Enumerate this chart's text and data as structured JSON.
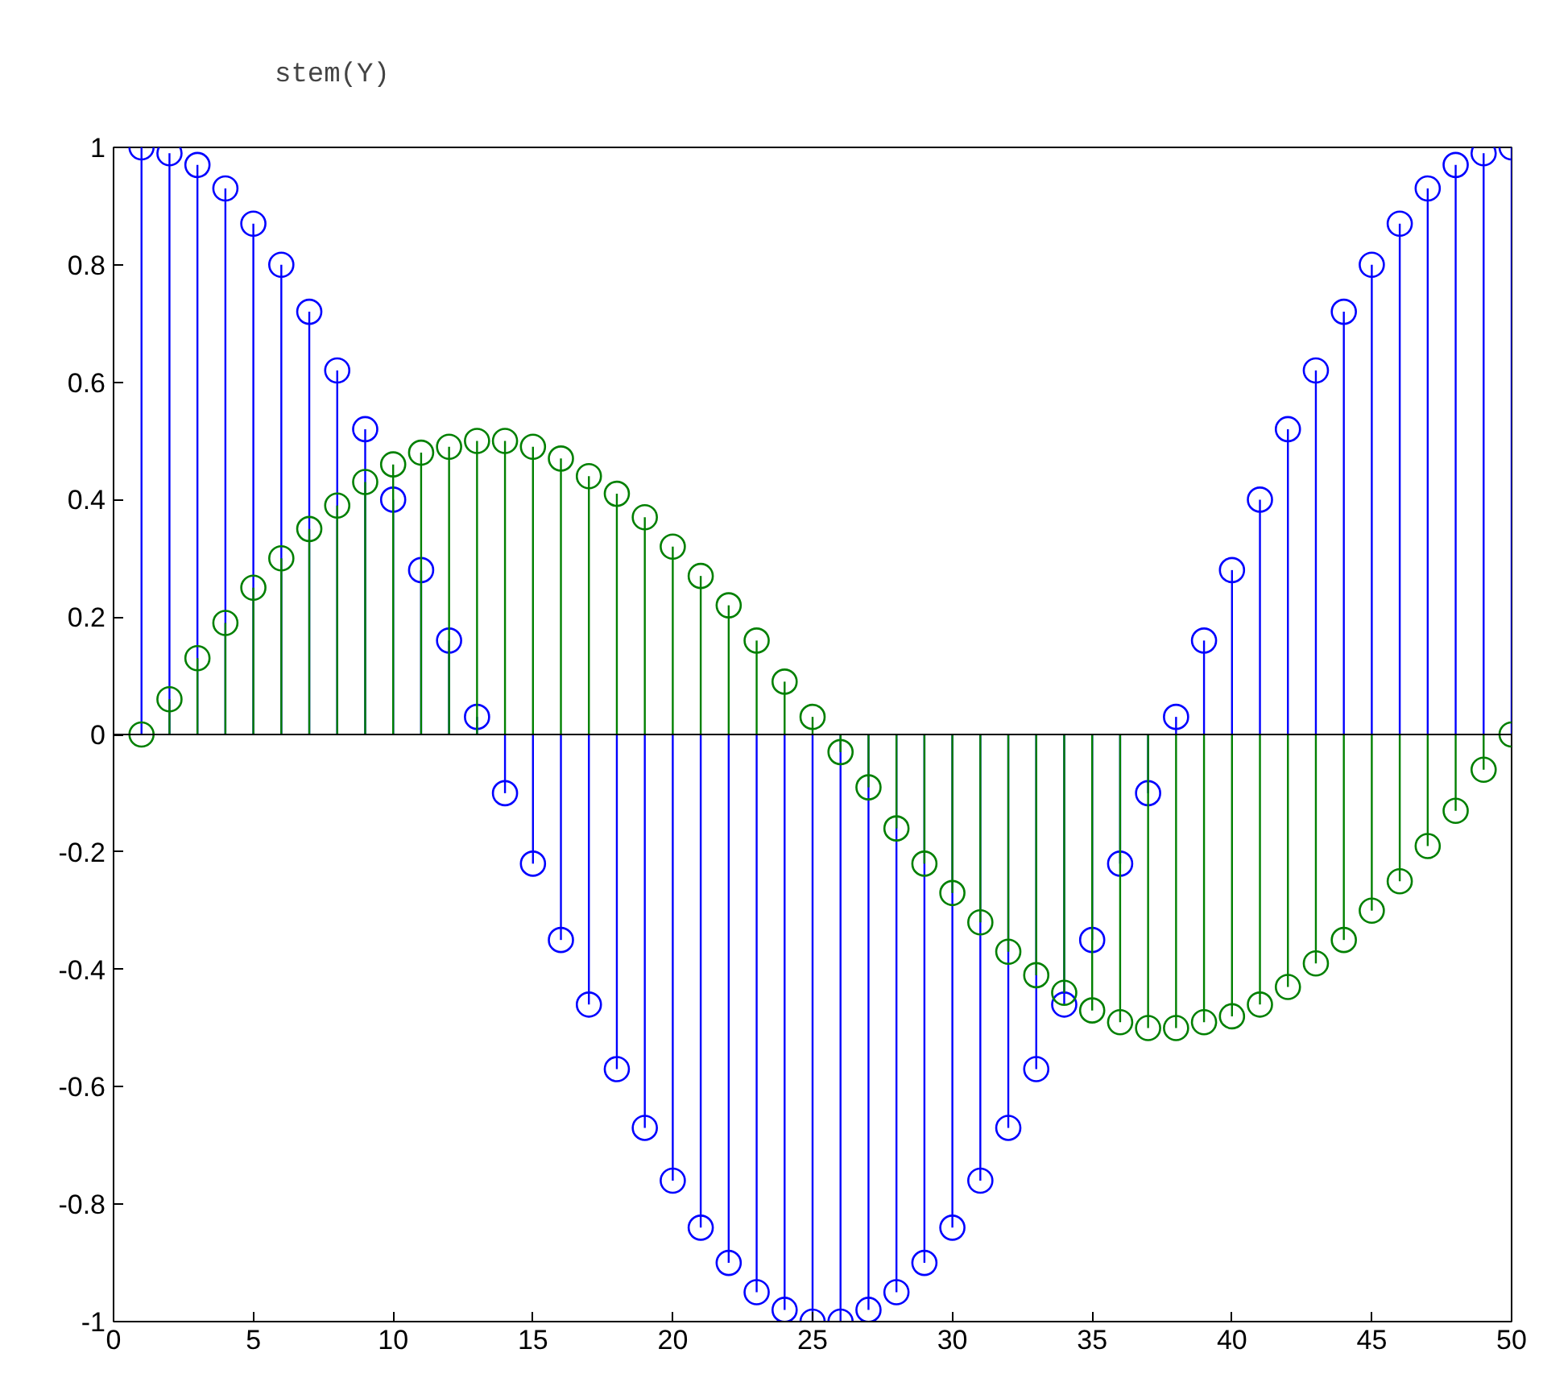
{
  "chart_data": {
    "type": "lollipop",
    "title": "stem(Y)",
    "x": [
      1,
      2,
      3,
      4,
      5,
      6,
      7,
      8,
      9,
      10,
      11,
      12,
      13,
      14,
      15,
      16,
      17,
      18,
      19,
      20,
      21,
      22,
      23,
      24,
      25,
      26,
      27,
      28,
      29,
      30,
      31,
      32,
      33,
      34,
      35,
      36,
      37,
      38,
      39,
      40,
      41,
      42,
      43,
      44,
      45,
      46,
      47,
      48,
      49,
      50
    ],
    "series": [
      {
        "color": "#0000ff",
        "values": [
          1.0,
          0.99,
          0.97,
          0.93,
          0.87,
          0.8,
          0.72,
          0.62,
          0.52,
          0.4,
          0.28,
          0.16,
          0.03,
          -0.1,
          -0.22,
          -0.35,
          -0.46,
          -0.57,
          -0.67,
          -0.76,
          -0.84,
          -0.9,
          -0.95,
          -0.98,
          -1.0,
          -1.0,
          -0.98,
          -0.95,
          -0.9,
          -0.84,
          -0.76,
          -0.67,
          -0.57,
          -0.46,
          -0.35,
          -0.22,
          -0.1,
          0.03,
          0.16,
          0.28,
          0.4,
          0.52,
          0.62,
          0.72,
          0.8,
          0.87,
          0.93,
          0.97,
          0.99,
          1.0
        ]
      },
      {
        "color": "#008000",
        "values": [
          0,
          0.06,
          0.13,
          0.19,
          0.25,
          0.3,
          0.35,
          0.39,
          0.43,
          0.46,
          0.48,
          0.49,
          0.5,
          0.5,
          0.49,
          0.47,
          0.44,
          0.41,
          0.37,
          0.32,
          0.27,
          0.22,
          0.16,
          0.09,
          0.03,
          -0.03,
          -0.09,
          -0.16,
          -0.22,
          -0.27,
          -0.32,
          -0.37,
          -0.41,
          -0.44,
          -0.47,
          -0.49,
          -0.5,
          -0.5,
          -0.49,
          -0.48,
          -0.46,
          -0.43,
          -0.39,
          -0.35,
          -0.3,
          -0.25,
          -0.19,
          -0.13,
          -0.06,
          0
        ]
      }
    ],
    "xlim": [
      0,
      50
    ],
    "xticks": [
      0,
      5,
      10,
      15,
      20,
      25,
      30,
      35,
      40,
      45,
      50
    ],
    "ylim": [
      -1,
      1
    ],
    "yticks": [
      -1,
      -0.8,
      -0.6,
      -0.4,
      -0.2,
      0,
      0.2,
      0.4,
      0.6,
      0.8,
      1
    ],
    "ref_lines": [
      {
        "axis": "y",
        "value": 0,
        "color": "#000000"
      }
    ],
    "marker": "circle",
    "grid": false
  }
}
